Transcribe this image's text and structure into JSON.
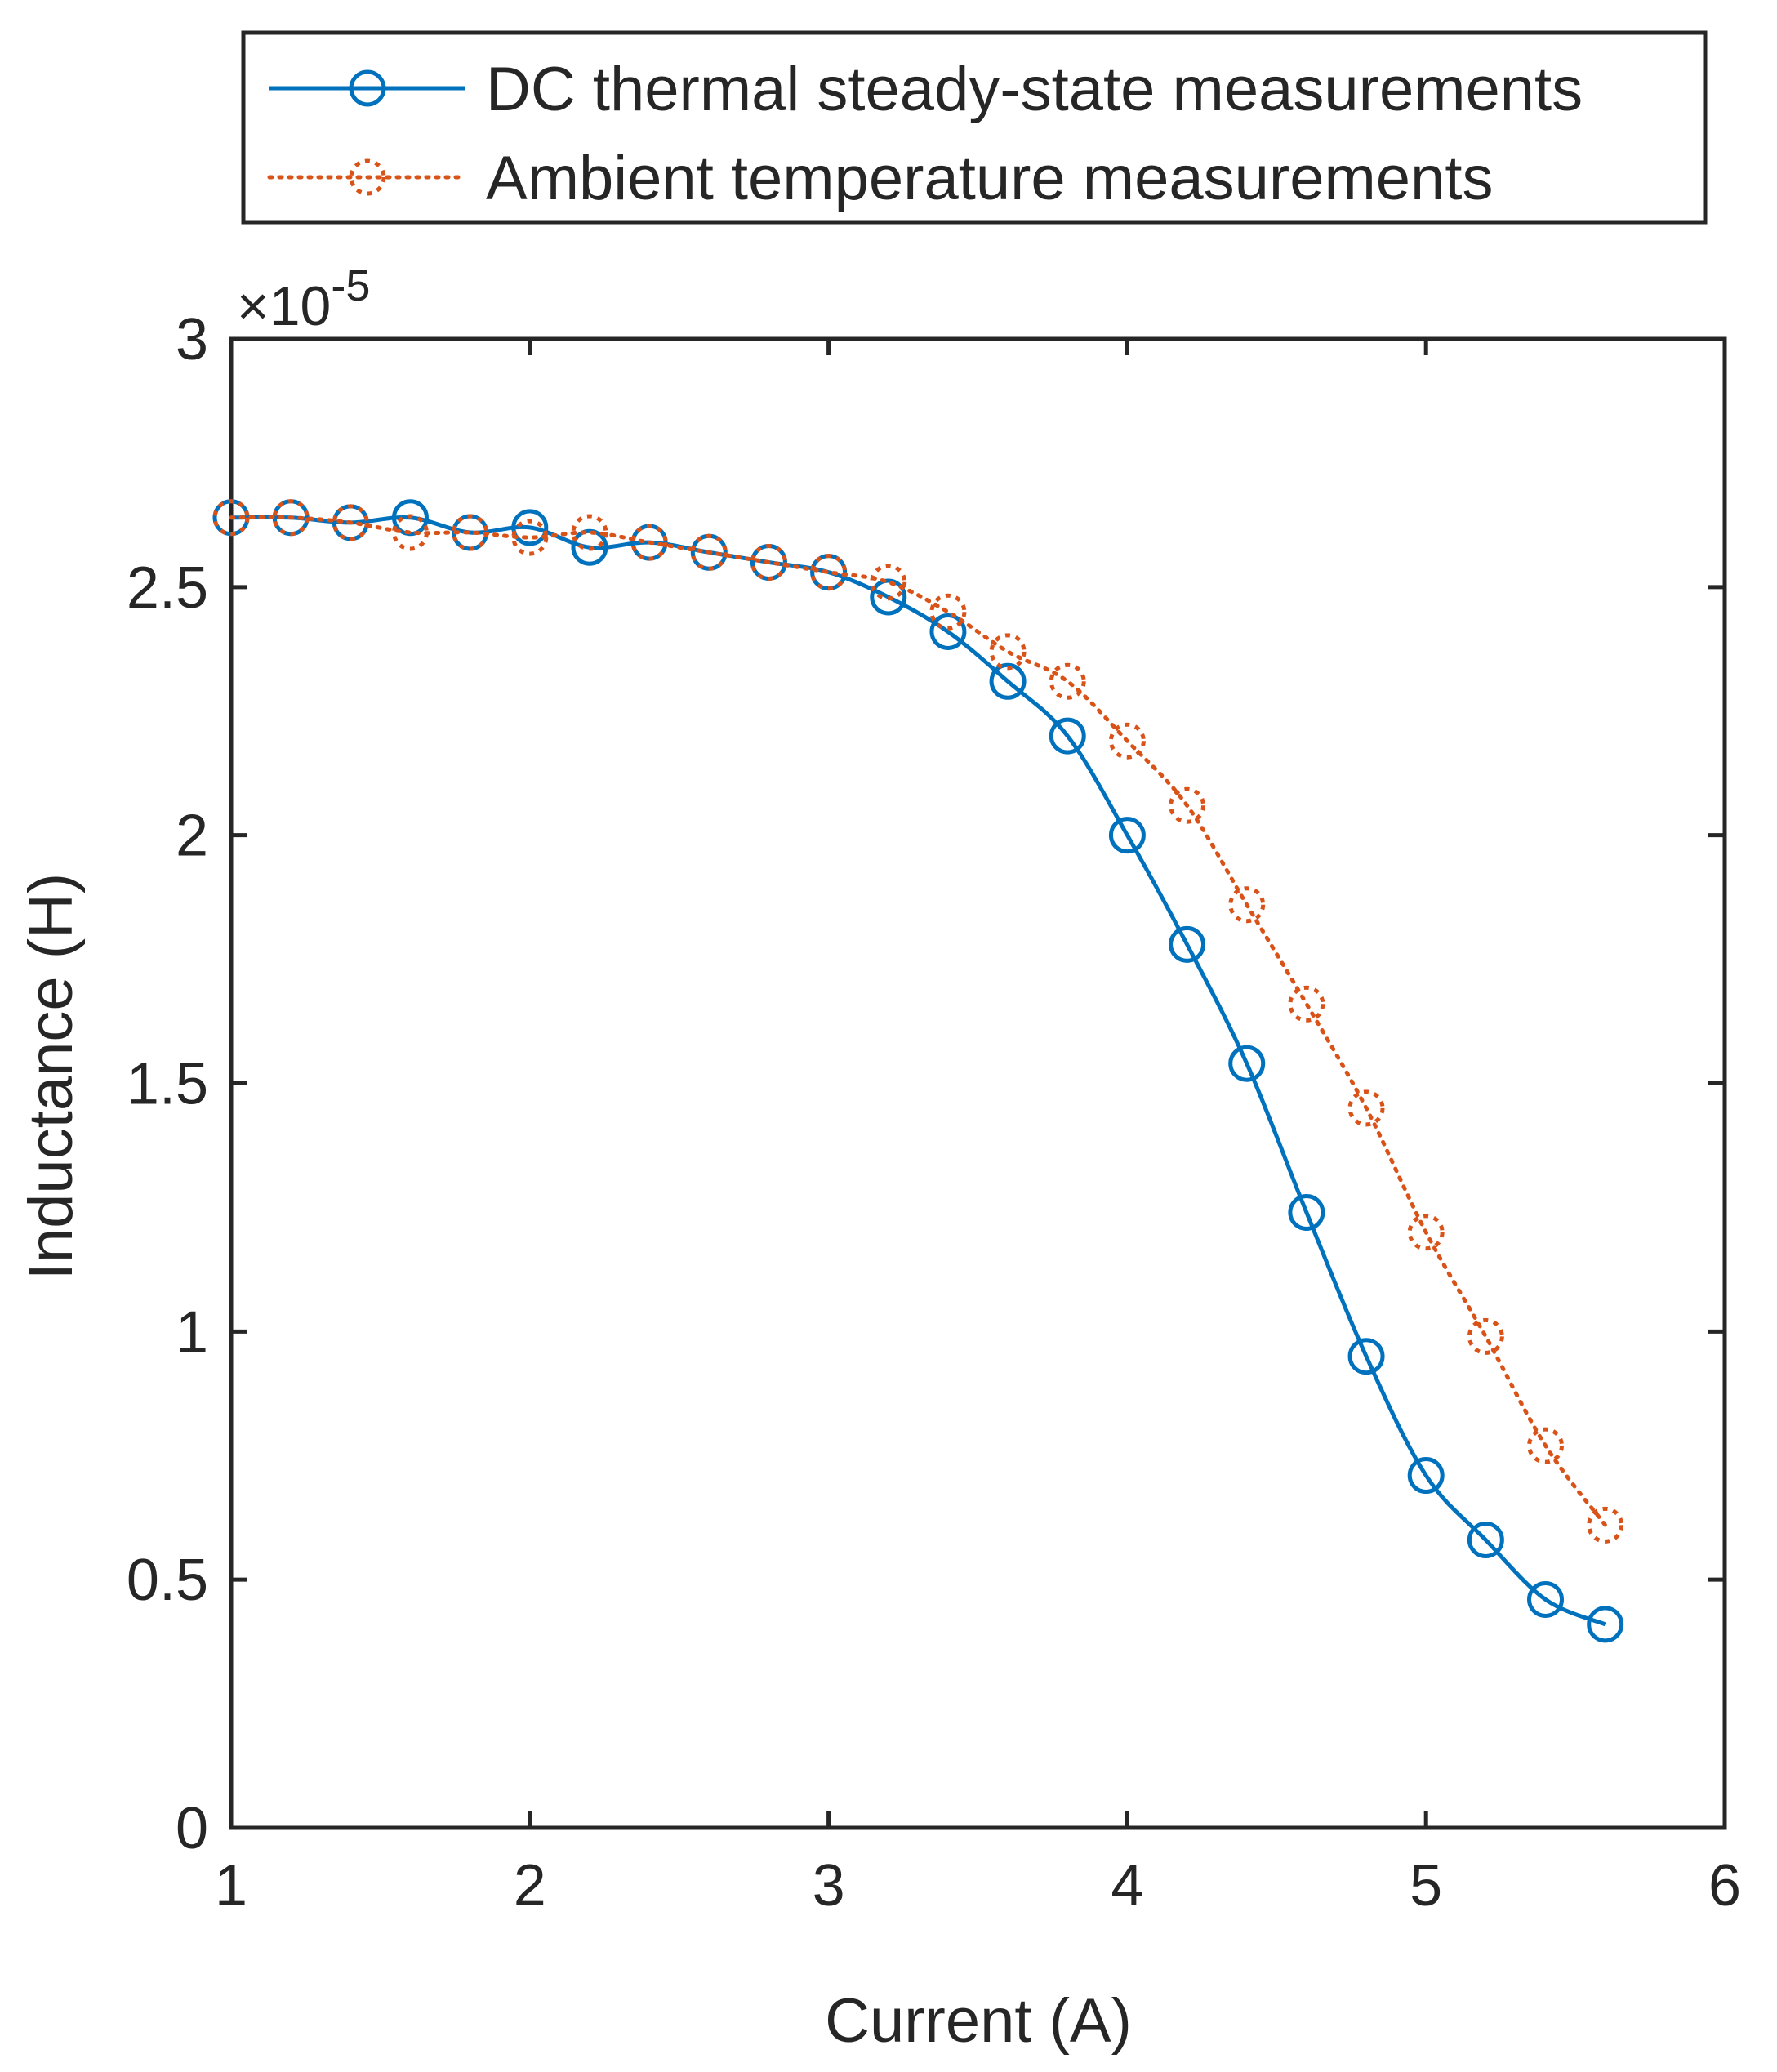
{
  "chart_data": {
    "type": "line",
    "title": "",
    "xlabel": "Current (A)",
    "ylabel": "Inductance (H)",
    "xlim": [
      1,
      6
    ],
    "ylim": [
      0,
      3
    ],
    "y_exponent_label": "×10",
    "y_exponent_power": "-5",
    "x_ticks": [
      1,
      2,
      3,
      4,
      5,
      6
    ],
    "x_tick_labels": [
      "1",
      "2",
      "3",
      "4",
      "5",
      "6"
    ],
    "y_ticks": [
      0,
      0.5,
      1,
      1.5,
      2,
      2.5,
      3
    ],
    "y_tick_labels": [
      "0",
      "0.5",
      "1",
      "1.5",
      "2",
      "2.5",
      "3"
    ],
    "grid": false,
    "legend_position": "top (above plot)",
    "series": [
      {
        "name": "DC thermal steady-state measurements",
        "color": "#0072BD",
        "line_style": "solid",
        "marker": "circle",
        "x": [
          1.0,
          1.2,
          1.4,
          1.6,
          1.8,
          2.0,
          2.2,
          2.4,
          2.6,
          2.8,
          3.0,
          3.2,
          3.4,
          3.6,
          3.8,
          4.0,
          4.2,
          4.4,
          4.6,
          4.8,
          5.0,
          5.2,
          5.4,
          5.6
        ],
        "y": [
          2.64,
          2.64,
          2.63,
          2.64,
          2.61,
          2.62,
          2.58,
          2.59,
          2.57,
          2.55,
          2.53,
          2.48,
          2.41,
          2.31,
          2.2,
          2.0,
          1.78,
          1.54,
          1.24,
          0.95,
          0.71,
          0.58,
          0.46,
          0.41
        ]
      },
      {
        "name": "Ambient temperature measurements",
        "color": "#D95319",
        "line_style": "dotted",
        "marker": "circle",
        "x": [
          1.0,
          1.2,
          1.4,
          1.6,
          1.8,
          2.0,
          2.2,
          2.4,
          2.6,
          2.8,
          3.0,
          3.2,
          3.4,
          3.6,
          3.8,
          4.0,
          4.2,
          4.4,
          4.6,
          4.8,
          5.0,
          5.2,
          5.4,
          5.6
        ],
        "y": [
          2.64,
          2.64,
          2.63,
          2.61,
          2.61,
          2.6,
          2.61,
          2.59,
          2.57,
          2.55,
          2.53,
          2.51,
          2.45,
          2.37,
          2.31,
          2.19,
          2.06,
          1.86,
          1.66,
          1.45,
          1.2,
          0.99,
          0.77,
          0.61
        ]
      }
    ]
  }
}
